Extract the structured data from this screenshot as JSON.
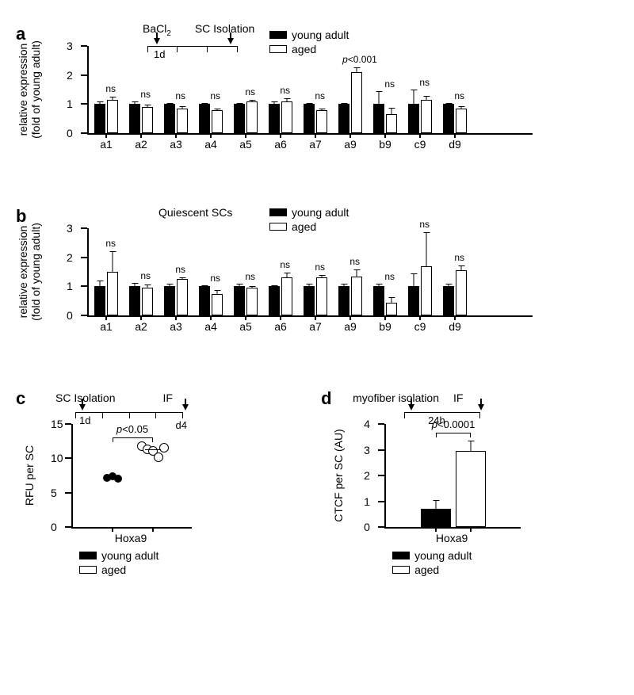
{
  "colors": {
    "young": "#000000",
    "aged": "#ffffff",
    "stroke": "#000000",
    "background": "#ffffff"
  },
  "legend": {
    "young": "young adult",
    "aged": "aged"
  },
  "panelA": {
    "label": "a",
    "ylabel": "relative expression\n(fold of young adult)",
    "timeline": {
      "label_left": "BaCl",
      "label_left_sub": "2",
      "label_right": "SC Isolation",
      "day_label": "1d"
    },
    "ymax": 3,
    "yticks": [
      0,
      1,
      2,
      3
    ],
    "categories": [
      "a1",
      "a2",
      "a3",
      "a4",
      "a5",
      "a6",
      "a7",
      "a9",
      "b9",
      "c9",
      "d9"
    ],
    "young": [
      1.0,
      1.0,
      1.0,
      1.0,
      1.0,
      1.0,
      1.0,
      1.0,
      1.0,
      1.0,
      1.0
    ],
    "young_err": [
      0.08,
      0.08,
      0.05,
      0.05,
      0.05,
      0.08,
      0.05,
      0.05,
      0.45,
      0.5,
      0.05
    ],
    "aged": [
      1.15,
      0.9,
      0.85,
      0.8,
      1.1,
      1.1,
      0.8,
      2.1,
      0.65,
      1.15,
      0.85
    ],
    "aged_err": [
      0.12,
      0.1,
      0.1,
      0.08,
      0.08,
      0.12,
      0.08,
      0.18,
      0.25,
      0.15,
      0.1
    ],
    "sig": [
      "ns",
      "ns",
      "ns",
      "ns",
      "ns",
      "ns",
      "ns",
      "p<0.001",
      "ns",
      "ns",
      "ns"
    ]
  },
  "panelB": {
    "label": "b",
    "title": "Quiescent SCs",
    "ylabel": "relative expression\n(fold of young adult)",
    "ymax": 3,
    "yticks": [
      0,
      1,
      2,
      3
    ],
    "categories": [
      "a1",
      "a2",
      "a3",
      "a4",
      "a5",
      "a6",
      "a7",
      "a9",
      "b9",
      "c9",
      "d9"
    ],
    "young": [
      1.0,
      1.0,
      1.0,
      1.0,
      1.0,
      1.0,
      1.0,
      1.0,
      1.0,
      1.0,
      1.0
    ],
    "young_err": [
      0.2,
      0.12,
      0.08,
      0.05,
      0.1,
      0.05,
      0.08,
      0.1,
      0.1,
      0.45,
      0.1
    ],
    "aged": [
      1.5,
      0.95,
      1.25,
      0.75,
      0.95,
      1.3,
      1.3,
      1.35,
      0.45,
      1.7,
      1.55
    ],
    "aged_err": [
      0.75,
      0.15,
      0.08,
      0.15,
      0.1,
      0.2,
      0.12,
      0.25,
      0.2,
      1.2,
      0.2
    ],
    "sig": [
      "ns",
      "ns",
      "ns",
      "ns",
      "ns",
      "ns",
      "ns",
      "ns",
      "ns",
      "ns",
      "ns"
    ]
  },
  "panelC": {
    "label": "c",
    "timeline": {
      "left": "SC Isolation",
      "right": "IF",
      "day": "1d",
      "end": "d4"
    },
    "ylabel": "RFU per SC",
    "ymax": 15,
    "yticks": [
      0,
      5,
      10,
      15
    ],
    "groups": [
      "Hoxa9"
    ],
    "p": "p<0.05",
    "young_points": [
      7.2,
      7.4,
      7.0
    ],
    "aged_points": [
      11.8,
      11.3,
      11.1,
      10.2,
      11.5
    ],
    "young_median": 7.3,
    "aged_median": 11.2
  },
  "panelD": {
    "label": "d",
    "timeline": {
      "left": "myofiber isolation",
      "right": "IF",
      "dur": "24h"
    },
    "ylabel": "CTCF per SC (AU)",
    "ymax": 4,
    "yticks": [
      0,
      1,
      2,
      3,
      4
    ],
    "groups": [
      "Hoxa9"
    ],
    "p": "p<0.0001",
    "young": 0.7,
    "young_err": 0.35,
    "aged": 2.95,
    "aged_err": 0.45
  }
}
